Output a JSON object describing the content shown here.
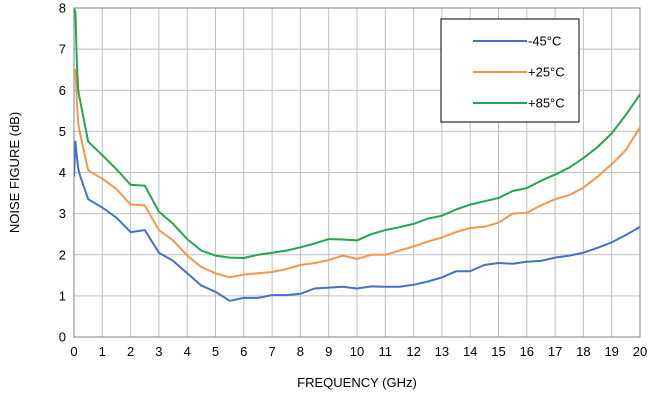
{
  "chart_data": {
    "type": "line",
    "xlabel": "FREQUENCY (GHz)",
    "ylabel": "NOISE FIGURE (dB)",
    "xlim": [
      0,
      20
    ],
    "ylim": [
      0,
      8
    ],
    "x_ticks": [
      0,
      1,
      2,
      3,
      4,
      5,
      6,
      7,
      8,
      9,
      10,
      11,
      12,
      13,
      14,
      15,
      16,
      17,
      18,
      19,
      20
    ],
    "y_ticks": [
      0,
      1,
      2,
      3,
      4,
      5,
      6,
      7,
      8
    ],
    "grid": true,
    "legend_position": "top-right",
    "series": [
      {
        "name": "-45°C",
        "color": "#4472C4",
        "x": [
          0,
          0.05,
          0.1,
          0.15,
          0.2,
          0.5,
          1,
          1.5,
          2,
          2.5,
          3,
          3.5,
          4,
          4.5,
          5,
          5.5,
          6,
          6.5,
          7,
          7.5,
          8,
          8.5,
          9,
          9.5,
          10,
          10.5,
          11,
          11.5,
          12,
          12.5,
          13,
          13.5,
          14,
          14.5,
          15,
          15.5,
          16,
          16.5,
          17,
          17.5,
          18,
          18.5,
          19,
          19.5,
          20
        ],
        "y": [
          3.9,
          4.75,
          4.4,
          4.1,
          3.95,
          3.35,
          3.15,
          2.9,
          2.55,
          2.6,
          2.05,
          1.85,
          1.55,
          1.25,
          1.1,
          0.88,
          0.95,
          0.95,
          1.02,
          1.02,
          1.05,
          1.18,
          1.2,
          1.22,
          1.18,
          1.23,
          1.22,
          1.22,
          1.27,
          1.35,
          1.45,
          1.6,
          1.6,
          1.75,
          1.8,
          1.78,
          1.83,
          1.85,
          1.93,
          1.98,
          2.05,
          2.17,
          2.3,
          2.48,
          2.68
        ]
      },
      {
        "name": "+25°C",
        "color": "#F79646",
        "x": [
          0,
          0.05,
          0.1,
          0.15,
          0.2,
          0.5,
          1,
          1.5,
          2,
          2.5,
          3,
          3.5,
          4,
          4.5,
          5,
          5.5,
          6,
          6.5,
          7,
          7.5,
          8,
          8.5,
          9,
          9.5,
          10,
          10.5,
          11,
          11.5,
          12,
          12.5,
          13,
          13.5,
          14,
          14.5,
          15,
          15.5,
          16,
          16.5,
          17,
          17.5,
          18,
          18.5,
          19,
          19.5,
          20
        ],
        "y": [
          6.3,
          6.5,
          5.8,
          5.2,
          5.0,
          4.05,
          3.85,
          3.6,
          3.22,
          3.2,
          2.6,
          2.35,
          1.98,
          1.7,
          1.55,
          1.45,
          1.52,
          1.55,
          1.58,
          1.65,
          1.75,
          1.8,
          1.87,
          1.98,
          1.9,
          2.0,
          2.0,
          2.1,
          2.2,
          2.32,
          2.42,
          2.55,
          2.65,
          2.68,
          2.78,
          3.0,
          3.02,
          3.2,
          3.35,
          3.45,
          3.63,
          3.9,
          4.2,
          4.55,
          5.1
        ]
      },
      {
        "name": "+85°C",
        "color": "#1FA84F",
        "x": [
          0,
          0.05,
          0.1,
          0.15,
          0.2,
          0.5,
          1,
          1.5,
          2,
          2.5,
          3,
          3.5,
          4,
          4.5,
          5,
          5.5,
          6,
          6.5,
          7,
          7.5,
          8,
          8.5,
          9,
          9.5,
          10,
          10.5,
          11,
          11.5,
          12,
          12.5,
          13,
          13.5,
          14,
          14.5,
          15,
          15.5,
          16,
          16.5,
          17,
          17.5,
          18,
          18.5,
          19,
          19.5,
          20
        ],
        "y": [
          8.0,
          7.9,
          6.7,
          6.0,
          5.8,
          4.75,
          4.42,
          4.08,
          3.7,
          3.68,
          3.05,
          2.75,
          2.38,
          2.1,
          1.98,
          1.93,
          1.92,
          2.0,
          2.05,
          2.1,
          2.18,
          2.27,
          2.38,
          2.37,
          2.35,
          2.5,
          2.6,
          2.67,
          2.75,
          2.88,
          2.95,
          3.1,
          3.22,
          3.3,
          3.38,
          3.55,
          3.62,
          3.8,
          3.95,
          4.12,
          4.35,
          4.62,
          4.95,
          5.4,
          5.9
        ]
      }
    ]
  }
}
